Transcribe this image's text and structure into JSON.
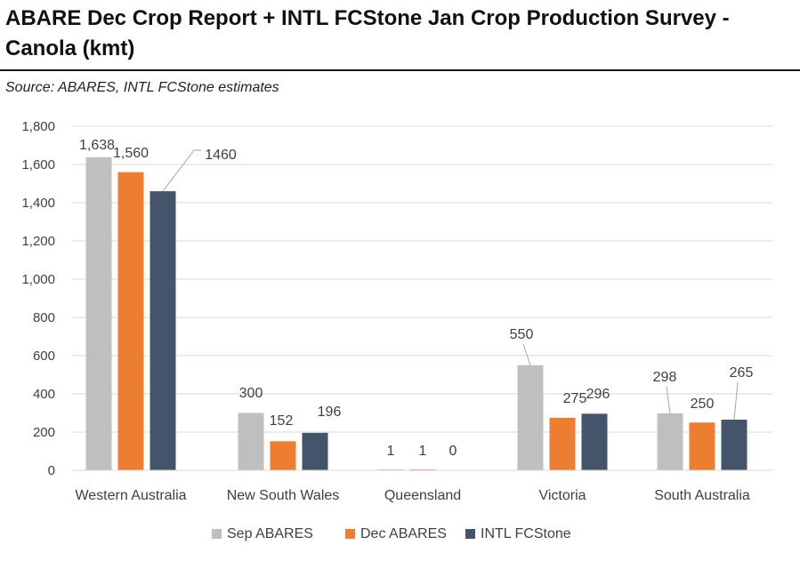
{
  "header": {
    "title": "ABARE Dec Crop Report + INTL FCStone Jan Crop Production Survey - Canola (kmt)",
    "source": "Source: ABARES, INTL FCStone estimates"
  },
  "chart_data": {
    "type": "bar",
    "title": "ABARE Dec Crop Report + INTL FCStone Jan Crop Production Survey - Canola (kmt)",
    "subtitle": "Source: ABARES, INTL FCStone estimates",
    "categories": [
      "Western Australia",
      "New South Wales",
      "Queensland",
      "Victoria",
      "South Australia"
    ],
    "series": [
      {
        "name": "Sep ABARES",
        "color": "#bfbfbf",
        "values": [
          1638,
          300,
          1,
          550,
          298
        ],
        "labels": [
          "1,638",
          "300",
          "1",
          "550",
          "298"
        ]
      },
      {
        "name": "Dec ABARES",
        "color": "#ed7d31",
        "values": [
          1560,
          152,
          1,
          275,
          250
        ],
        "labels": [
          "1,560",
          "152",
          "1",
          "275",
          "250"
        ]
      },
      {
        "name": "INTL FCStone",
        "color": "#44546a",
        "values": [
          1460,
          196,
          0,
          296,
          265
        ],
        "labels": [
          "1460",
          "196",
          "0",
          "296",
          "265"
        ]
      }
    ],
    "yticks": [
      "0",
      "200",
      "400",
      "600",
      "800",
      "1,000",
      "1,200",
      "1,400",
      "1,600",
      "1,800"
    ],
    "ylim": [
      0,
      1800
    ],
    "grid": true,
    "legend": "bottom"
  }
}
